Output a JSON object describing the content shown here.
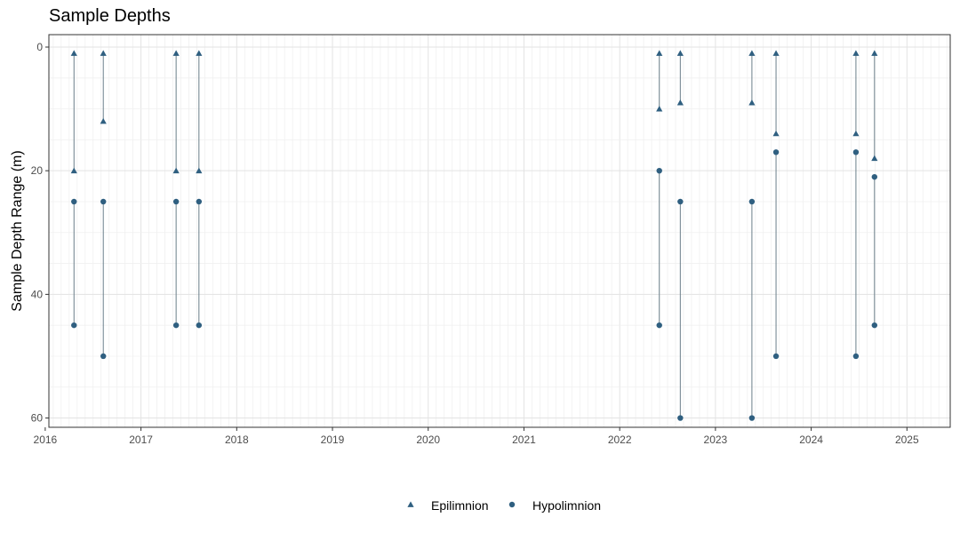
{
  "chart_data": {
    "type": "scatter",
    "title": "Sample Depths",
    "xlabel": "",
    "ylabel": "Sample Depth Range (m)",
    "y_reversed": true,
    "ylim": [
      0,
      61.5
    ],
    "xlim": [
      "2016-01-15",
      "2025-06-15"
    ],
    "y_ticks": [
      0,
      20,
      40,
      60
    ],
    "x_ticks": [
      "2016",
      "2017",
      "2018",
      "2019",
      "2020",
      "2021",
      "2022",
      "2023",
      "2024",
      "2025"
    ],
    "grid": true,
    "legend_position": "bottom",
    "color": "#2f5f80",
    "line_color": "#6b7f8a",
    "series": [
      {
        "name": "Epilimnion",
        "marker": "triangle",
        "points": [
          {
            "date": "2016-04-20",
            "min": 1,
            "max": 20
          },
          {
            "date": "2016-08-10",
            "min": 1,
            "max": 12
          },
          {
            "date": "2017-05-15",
            "min": 1,
            "max": 20
          },
          {
            "date": "2017-08-10",
            "min": 1,
            "max": 20
          },
          {
            "date": "2022-06-01",
            "min": 1,
            "max": 10
          },
          {
            "date": "2022-08-20",
            "min": 1,
            "max": 9
          },
          {
            "date": "2023-05-20",
            "min": 1,
            "max": 9
          },
          {
            "date": "2023-08-20",
            "min": 1,
            "max": 14
          },
          {
            "date": "2024-06-20",
            "min": 1,
            "max": 14
          },
          {
            "date": "2024-08-30",
            "min": 1,
            "max": 18
          }
        ]
      },
      {
        "name": "Hypolimnion",
        "marker": "circle",
        "points": [
          {
            "date": "2016-04-20",
            "min": 25,
            "max": 45
          },
          {
            "date": "2016-08-10",
            "min": 25,
            "max": 50
          },
          {
            "date": "2017-05-15",
            "min": 25,
            "max": 45
          },
          {
            "date": "2017-08-10",
            "min": 25,
            "max": 45
          },
          {
            "date": "2022-06-01",
            "min": 20,
            "max": 45
          },
          {
            "date": "2022-08-20",
            "min": 25,
            "max": 60
          },
          {
            "date": "2023-05-20",
            "min": 25,
            "max": 60
          },
          {
            "date": "2023-08-20",
            "min": 17,
            "max": 50
          },
          {
            "date": "2024-06-20",
            "min": 17,
            "max": 50
          },
          {
            "date": "2024-08-30",
            "min": 21,
            "max": 45
          }
        ]
      }
    ]
  }
}
